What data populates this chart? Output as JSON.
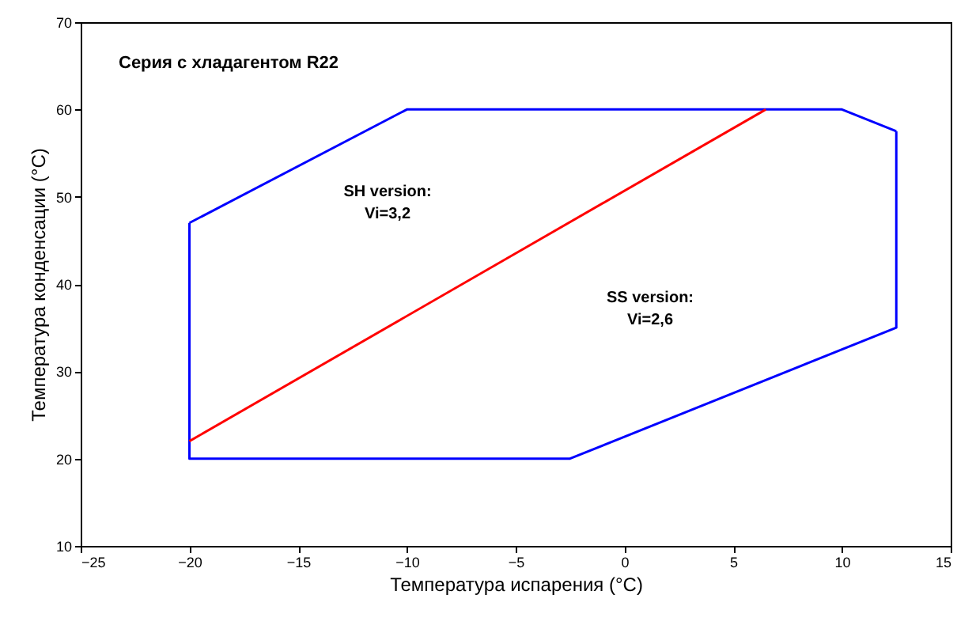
{
  "chart_data": {
    "type": "line",
    "title": "Серия с хладагентом R22",
    "xlabel": "Температура испарения (°C)",
    "ylabel": "Температура конденсации (°C)",
    "xlim": [
      -25,
      15
    ],
    "xticks": [
      -25,
      -20,
      -15,
      -10,
      -5,
      0,
      5,
      10,
      15
    ],
    "ylim": [
      10,
      70
    ],
    "yticks": [
      10,
      20,
      30,
      40,
      50,
      60,
      70
    ],
    "grid": false,
    "marker": "none",
    "line_style": "solid",
    "series": [
      {
        "color": "#0000ff",
        "x": [
          -20,
          -20,
          -2.5,
          12.5,
          12.5
        ],
        "values": [
          47,
          20,
          20,
          35,
          57.5
        ]
      },
      {
        "color": "#0000ff",
        "x": [
          -20,
          -10,
          10,
          12.5
        ],
        "values": [
          47,
          60,
          60,
          57.5
        ]
      },
      {
        "color": "#ff0000",
        "x": [
          -20,
          6.5
        ],
        "values": [
          22,
          60
        ]
      }
    ],
    "annotations": [
      "SH version:\nVi=3,2",
      "SS version:\nVi=2,6"
    ]
  }
}
